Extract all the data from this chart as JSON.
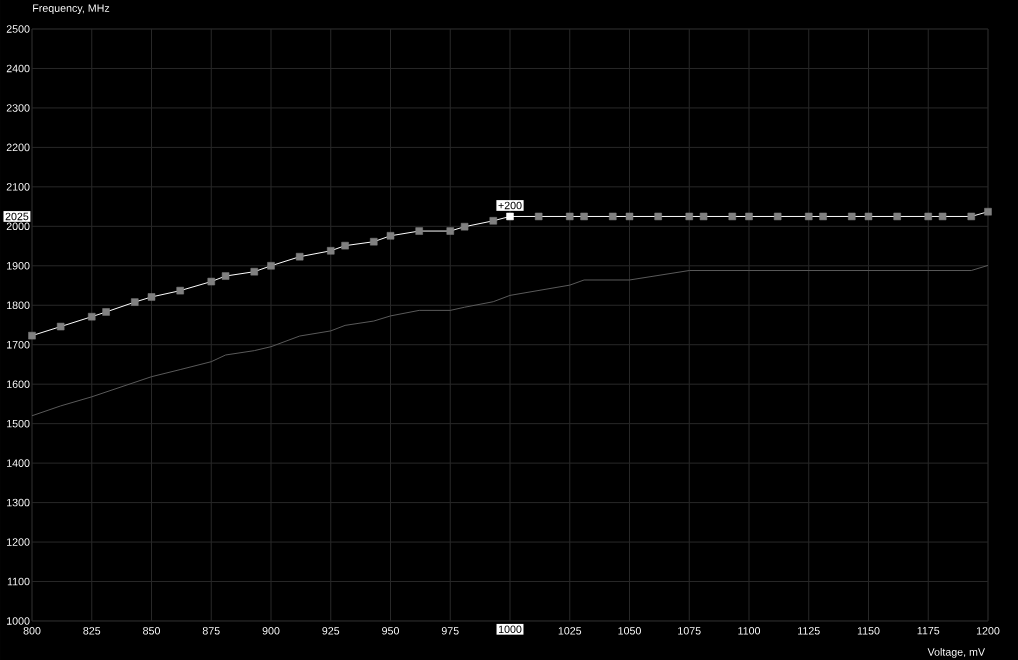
{
  "chart_data": {
    "type": "line",
    "ylabel": "Frequency, MHz",
    "xlabel": "Voltage, mV",
    "xlim": [
      800,
      1200
    ],
    "ylim": [
      1000,
      2500
    ],
    "xticks": [
      800,
      825,
      850,
      875,
      900,
      925,
      950,
      975,
      {
        "value": 1000,
        "label": null
      },
      1025,
      1050,
      1075,
      1100,
      1125,
      1150,
      1175,
      1200
    ],
    "yticks": [
      1000,
      1100,
      1200,
      1300,
      1400,
      1500,
      1600,
      1700,
      1800,
      1900,
      2000,
      2100,
      2200,
      2300,
      2400,
      2500
    ],
    "grid": true,
    "series": [
      {
        "color": "#5a5a5a",
        "marker": "none",
        "x": [
          800,
          812,
          825,
          850,
          862,
          875,
          881,
          893,
          900,
          912,
          925,
          931,
          943,
          950,
          962,
          975,
          981,
          993,
          1000,
          1025,
          1031,
          1050,
          1075,
          1193,
          1200
        ],
        "values": [
          1520,
          1545,
          1568,
          1619,
          1637,
          1657,
          1674,
          1685,
          1695,
          1722,
          1735,
          1749,
          1760,
          1773,
          1787,
          1787,
          1795,
          1809,
          1825,
          1851,
          1864,
          1864,
          1888,
          1888,
          1901
        ]
      },
      {
        "color": "#ffffff",
        "marker": "square",
        "x": [
          800,
          812,
          825,
          831,
          843,
          850,
          862,
          875,
          881,
          893,
          900,
          912,
          925,
          931,
          943,
          950,
          962,
          975,
          981,
          993,
          1000,
          1012,
          1025,
          1031,
          1043,
          1050,
          1062,
          1075,
          1081,
          1093,
          1100,
          1112,
          1125,
          1131,
          1143,
          1150,
          1162,
          1175,
          1181,
          1193,
          1200
        ],
        "values": [
          1723,
          1746,
          1771,
          1783,
          1808,
          1821,
          1837,
          1860,
          1874,
          1885,
          1900,
          1923,
          1938,
          1951,
          1961,
          1976,
          1988,
          1988,
          1999,
          2014,
          2025,
          2025,
          2025,
          2025,
          2025,
          2025,
          2025,
          2025,
          2025,
          2025,
          2025,
          2025,
          2025,
          2025,
          2025,
          2025,
          2025,
          2025,
          2025,
          2025,
          2037
        ],
        "colors": [
          "#808080",
          "#808080",
          "#808080",
          "#808080",
          "#808080",
          "#808080",
          "#808080",
          "#808080",
          "#808080",
          "#808080",
          "#808080",
          "#808080",
          "#808080",
          "#808080",
          "#808080",
          "#808080",
          "#808080",
          "#808080",
          "#808080",
          "#808080",
          "#ffffff",
          "#808080",
          "#808080",
          "#808080",
          "#808080",
          "#808080",
          "#808080",
          "#808080",
          "#808080",
          "#808080",
          "#808080",
          "#808080",
          "#808080",
          "#808080",
          "#808080",
          "#808080",
          "#808080",
          "#808080",
          "#808080",
          "#808080",
          "#808080"
        ]
      }
    ],
    "annotations": [
      {
        "text": "+200",
        "x": 1000,
        "y": 2025
      },
      {
        "text": "2025",
        "y": 2025
      },
      {
        "text": "1000",
        "x": 1000
      }
    ]
  }
}
